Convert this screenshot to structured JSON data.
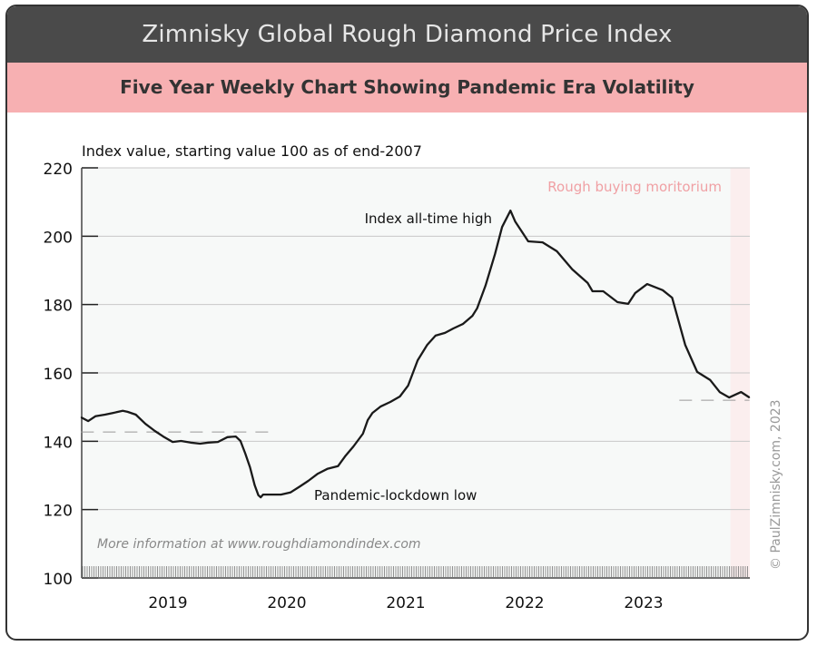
{
  "header": {
    "title": "Zimnisky Global Rough Diamond Price Index",
    "subtitle": "Five Year Weekly Chart Showing Pandemic Era Volatility"
  },
  "chart_data": {
    "type": "line",
    "title": "Zimnisky Global Rough Diamond Price Index",
    "subtitle": "Five Year Weekly Chart Showing Pandemic Era Volatility",
    "ylabel": "Index value, starting value 100 as of end-2007",
    "xlabel": "",
    "ylim": [
      100,
      220
    ],
    "xlim": [
      2018.27,
      2023.89
    ],
    "yticks": [
      100,
      120,
      140,
      160,
      180,
      200,
      220
    ],
    "xtick_labels": [
      "2019",
      "2020",
      "2021",
      "2022",
      "2023"
    ],
    "grid": true,
    "x": [
      2018.27,
      2018.33,
      2018.39,
      2018.47,
      2018.54,
      2018.62,
      2018.66,
      2018.73,
      2018.81,
      2018.89,
      2018.96,
      2019.04,
      2019.11,
      2019.19,
      2019.27,
      2019.34,
      2019.42,
      2019.5,
      2019.57,
      2019.61,
      2019.65,
      2019.69,
      2019.73,
      2019.76,
      2019.78,
      2019.8,
      2019.88,
      2019.95,
      2020.03,
      2020.11,
      2020.18,
      2020.26,
      2020.34,
      2020.43,
      2020.49,
      2020.56,
      2020.64,
      2020.68,
      2020.72,
      2020.79,
      2020.87,
      2020.95,
      2021.02,
      2021.1,
      2021.18,
      2021.25,
      2021.33,
      2021.4,
      2021.48,
      2021.56,
      2021.6,
      2021.67,
      2021.75,
      2021.81,
      2021.88,
      2021.92,
      2022.03,
      2022.15,
      2022.27,
      2022.4,
      2022.53,
      2022.57,
      2022.66,
      2022.78,
      2022.87,
      2022.93,
      2023.03,
      2023.16,
      2023.24,
      2023.35,
      2023.45,
      2023.56,
      2023.64,
      2023.72,
      2023.82,
      2023.89
    ],
    "values": [
      147.0,
      145.9,
      147.3,
      147.8,
      148.3,
      148.9,
      148.6,
      147.8,
      145.1,
      143.0,
      141.4,
      139.8,
      140.1,
      139.6,
      139.3,
      139.6,
      139.8,
      141.2,
      141.4,
      140.1,
      136.4,
      132.4,
      127.1,
      124.2,
      123.6,
      124.4,
      124.4,
      124.4,
      125.0,
      126.8,
      128.4,
      130.5,
      131.9,
      132.7,
      135.6,
      138.5,
      142.2,
      146.2,
      148.3,
      150.2,
      151.5,
      153.1,
      156.3,
      163.7,
      168.2,
      170.9,
      171.7,
      173.0,
      174.3,
      176.7,
      178.9,
      185.5,
      194.8,
      202.7,
      207.5,
      204.3,
      198.5,
      198.2,
      195.6,
      190.3,
      186.3,
      183.9,
      183.9,
      180.7,
      180.2,
      183.4,
      186.0,
      184.2,
      182.0,
      168.2,
      160.3,
      157.9,
      154.4,
      152.8,
      154.4,
      152.8
    ],
    "reference_lines": [
      {
        "value": 142.7,
        "from": 2018.27,
        "to": 2019.85
      },
      {
        "value": 152.0,
        "from": 2023.3,
        "to": 2023.89
      }
    ],
    "shaded_region": {
      "label": "Rough buying moritorium",
      "from": 2023.73,
      "to": 2023.89,
      "color": "#fbeeee"
    },
    "annotations": {
      "high": "Index all-time high",
      "low": "Pandemic-lockdown low",
      "info": "More information at www.roughdiamondindex.com"
    },
    "copyright": "© PaulZimnisky.com, 2023",
    "colors": {
      "line": "#1a1a1a",
      "header": "#4a4a4a",
      "subheader": "#f7b0b2",
      "moratorium_text": "#f0a0a4",
      "plot_bg": "#f7f9f8"
    }
  }
}
